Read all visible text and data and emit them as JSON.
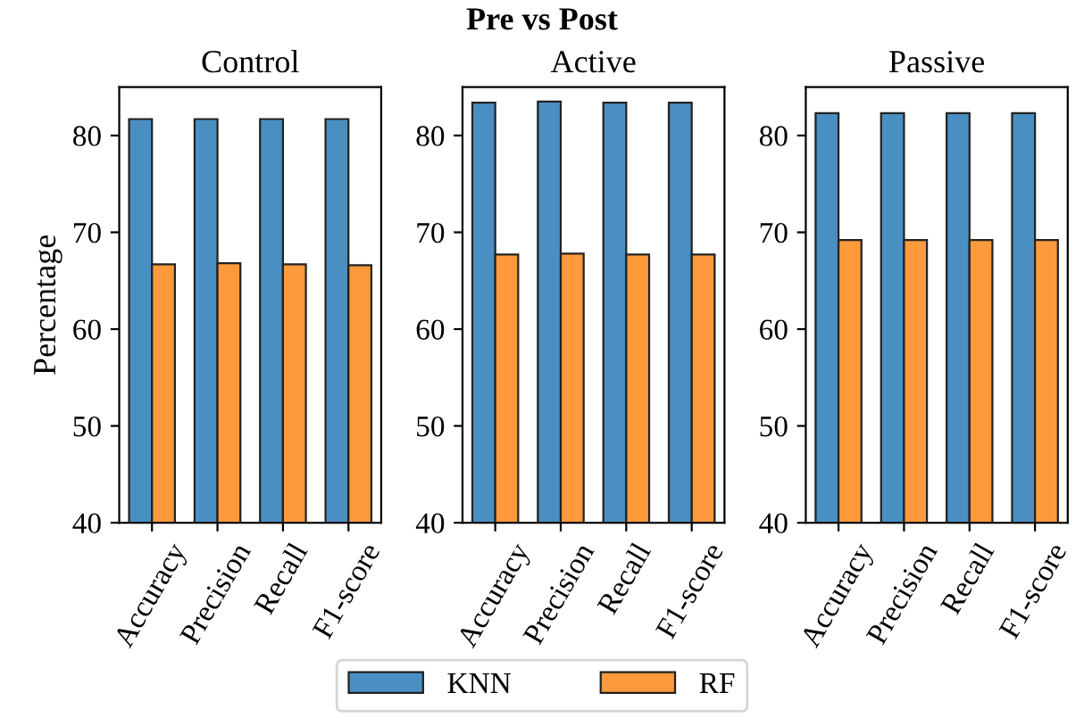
{
  "chart_data": [
    {
      "type": "bar",
      "title": "Control",
      "ylabel": "Percentage",
      "annotations": [
        "Pre vs Post"
      ],
      "legend": "bottom",
      "categories": [
        "Accuracy",
        "Precision",
        "Recall",
        "F1-score"
      ],
      "ylim": [
        40,
        85
      ],
      "yticks": [
        40,
        50,
        60,
        70,
        80
      ],
      "series": [
        {
          "name": "KNN",
          "color": "#4a8fc2",
          "values": [
            81.7,
            81.7,
            81.7,
            81.7
          ]
        },
        {
          "name": "RF",
          "color": "#fe9a3c",
          "values": [
            66.7,
            66.8,
            66.7,
            66.6
          ]
        }
      ]
    },
    {
      "type": "bar",
      "title": "Active",
      "categories": [
        "Accuracy",
        "Precision",
        "Recall",
        "F1-score"
      ],
      "ylim": [
        40,
        85
      ],
      "yticks": [
        40,
        50,
        60,
        70,
        80
      ],
      "series": [
        {
          "color": "#4a8fc2",
          "values": [
            83.4,
            83.5,
            83.4,
            83.4
          ]
        },
        {
          "color": "#fe9a3c",
          "values": [
            67.7,
            67.8,
            67.7,
            67.7
          ]
        }
      ]
    },
    {
      "type": "bar",
      "title": "Passive",
      "categories": [
        "Accuracy",
        "Precision",
        "Recall",
        "F1-score"
      ],
      "ylim": [
        40,
        85
      ],
      "yticks": [
        40,
        50,
        60,
        70,
        80
      ],
      "series": [
        {
          "color": "#4a8fc2",
          "values": [
            82.3,
            82.3,
            82.3,
            82.3
          ]
        },
        {
          "color": "#fe9a3c",
          "values": [
            69.2,
            69.2,
            69.2,
            69.2
          ]
        }
      ]
    }
  ]
}
